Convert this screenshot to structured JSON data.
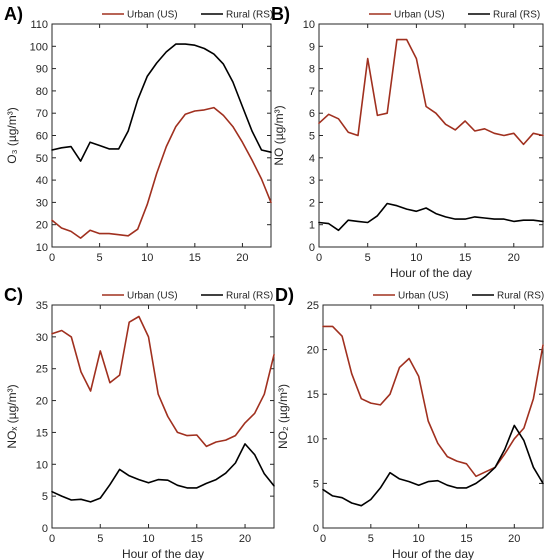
{
  "colors": {
    "urban": "#a0301f",
    "rural": "#000000"
  },
  "chart_data": [
    {
      "type": "line",
      "panel_label": "A)",
      "xlabel": "",
      "ylabel": "O₃ (µg/m³)",
      "xlim": [
        0,
        23
      ],
      "ylim": [
        10,
        110
      ],
      "x_ticks": [
        0,
        5,
        10,
        15,
        20
      ],
      "y_ticks": [
        10,
        20,
        30,
        40,
        50,
        60,
        70,
        80,
        90,
        100,
        110
      ],
      "legend": "top",
      "x": [
        0,
        1,
        2,
        3,
        4,
        5,
        6,
        7,
        8,
        9,
        10,
        11,
        12,
        13,
        14,
        15,
        16,
        17,
        18,
        19,
        20,
        21,
        22,
        23
      ],
      "series": [
        {
          "name": "Urban (US)",
          "color_key": "urban",
          "values": [
            22,
            18.5,
            17,
            14,
            17.5,
            16,
            16,
            15.5,
            15,
            18,
            29,
            43,
            55,
            64,
            69.5,
            71,
            71.5,
            72.5,
            69,
            64,
            57,
            49,
            40.5,
            30
          ]
        },
        {
          "name": "Rural (RS)",
          "color_key": "rural",
          "values": [
            53.5,
            54.5,
            55,
            48.5,
            57,
            55.5,
            54,
            54,
            62,
            76,
            86.5,
            92.5,
            97.5,
            101,
            101,
            100.5,
            99,
            96.5,
            92,
            84,
            73,
            62,
            53.5,
            52.5
          ]
        }
      ]
    },
    {
      "type": "line",
      "panel_label": "B)",
      "xlabel": "Hour of the day",
      "ylabel": "NO (µg/m³)",
      "xlim": [
        0,
        23
      ],
      "ylim": [
        0,
        10
      ],
      "x_ticks": [
        0,
        5,
        10,
        15,
        20
      ],
      "y_ticks": [
        0,
        1,
        2,
        3,
        4,
        5,
        6,
        7,
        8,
        9,
        10
      ],
      "legend": "top",
      "x": [
        0,
        1,
        2,
        3,
        4,
        5,
        6,
        7,
        8,
        9,
        10,
        11,
        12,
        13,
        14,
        15,
        16,
        17,
        18,
        19,
        20,
        21,
        22,
        23
      ],
      "series": [
        {
          "name": "Urban (US)",
          "color_key": "urban",
          "values": [
            5.55,
            5.95,
            5.75,
            5.15,
            5.0,
            8.45,
            5.9,
            6.0,
            9.3,
            9.3,
            8.45,
            6.3,
            6.0,
            5.5,
            5.25,
            5.65,
            5.2,
            5.3,
            5.1,
            5.0,
            5.1,
            4.6,
            5.1,
            5.0
          ]
        },
        {
          "name": "Rural (RS)",
          "color_key": "rural",
          "values": [
            1.1,
            1.05,
            0.75,
            1.2,
            1.15,
            1.1,
            1.4,
            1.95,
            1.85,
            1.7,
            1.6,
            1.75,
            1.5,
            1.35,
            1.25,
            1.25,
            1.35,
            1.3,
            1.25,
            1.25,
            1.15,
            1.2,
            1.2,
            1.15
          ]
        }
      ]
    },
    {
      "type": "line",
      "panel_label": "C)",
      "xlabel": "Hour of the day",
      "ylabel": "NOₓ (µg/m³)",
      "xlim": [
        0,
        23
      ],
      "ylim": [
        0,
        35
      ],
      "x_ticks": [
        0,
        5,
        10,
        15,
        20
      ],
      "y_ticks": [
        0,
        5,
        10,
        15,
        20,
        25,
        30,
        35
      ],
      "legend": "top",
      "x": [
        0,
        1,
        2,
        3,
        4,
        5,
        6,
        7,
        8,
        9,
        10,
        11,
        12,
        13,
        14,
        15,
        16,
        17,
        18,
        19,
        20,
        21,
        22,
        23
      ],
      "series": [
        {
          "name": "Urban (US)",
          "color_key": "urban",
          "values": [
            30.5,
            31,
            30,
            24.5,
            21.5,
            27.8,
            22.8,
            24,
            32.3,
            33.2,
            30,
            21,
            17.5,
            15,
            14.5,
            14.6,
            12.8,
            13.5,
            13.8,
            14.5,
            16.5,
            18,
            21,
            27.2
          ]
        },
        {
          "name": "Rural (RS)",
          "color_key": "rural",
          "values": [
            5.7,
            5,
            4.4,
            4.5,
            4.1,
            4.7,
            6.8,
            9.2,
            8.2,
            7.6,
            7.1,
            7.6,
            7.5,
            6.7,
            6.3,
            6.3,
            7.0,
            7.6,
            8.6,
            10.2,
            13.2,
            11.5,
            8.5,
            6.6
          ]
        }
      ]
    },
    {
      "type": "line",
      "panel_label": "D)",
      "xlabel": "Hour of the day",
      "ylabel": "NO₂ (µg/m³)",
      "xlim": [
        0,
        23
      ],
      "ylim": [
        0,
        25
      ],
      "x_ticks": [
        0,
        5,
        10,
        15,
        20
      ],
      "y_ticks": [
        0,
        5,
        10,
        15,
        20,
        25
      ],
      "legend": "top",
      "x": [
        0,
        1,
        2,
        3,
        4,
        5,
        6,
        7,
        8,
        9,
        10,
        11,
        12,
        13,
        14,
        15,
        16,
        17,
        18,
        19,
        20,
        21,
        22,
        23
      ],
      "series": [
        {
          "name": "Urban (US)",
          "color_key": "urban",
          "values": [
            22.6,
            22.6,
            21.5,
            17.3,
            14.5,
            14,
            13.8,
            15,
            18,
            19,
            17,
            12,
            9.5,
            8,
            7.5,
            7.2,
            5.8,
            6.3,
            6.8,
            8.3,
            10,
            11.2,
            14.5,
            20.5
          ]
        },
        {
          "name": "Rural (RS)",
          "color_key": "rural",
          "values": [
            4.3,
            3.6,
            3.4,
            2.8,
            2.5,
            3.2,
            4.5,
            6.2,
            5.5,
            5.2,
            4.8,
            5.2,
            5.3,
            4.8,
            4.5,
            4.5,
            5.0,
            5.8,
            6.8,
            8.8,
            11.5,
            9.8,
            6.8,
            5.0
          ]
        }
      ]
    }
  ]
}
